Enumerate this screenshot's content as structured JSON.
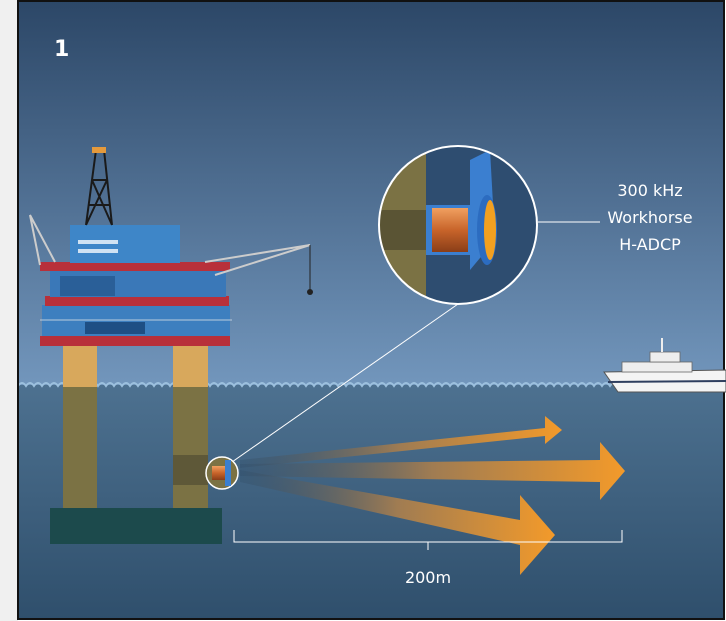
{
  "panel_number": "1",
  "callout": {
    "lines": [
      "300 kHz",
      "Workhorse",
      "H-ADCP"
    ]
  },
  "distance_label": "200m"
}
